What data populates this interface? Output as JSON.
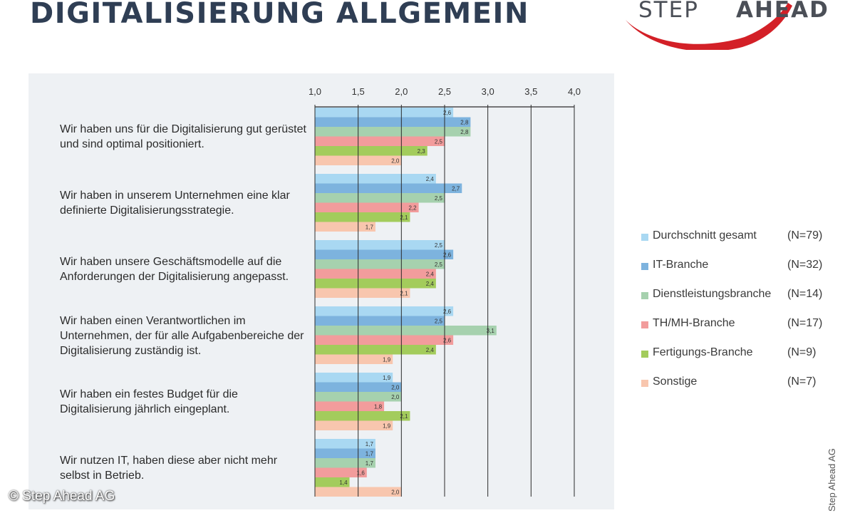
{
  "title": "DIGITALISIERUNG ALLGEMEIN",
  "logo": {
    "left_text": "STEP",
    "right_text": "AHEAD",
    "color_text": "#4b4f57",
    "color_swoosh": "#d32027"
  },
  "copyright": "© Step Ahead AG",
  "side_credit": "Step Ahead AG",
  "chart_data": {
    "type": "bar",
    "orientation": "horizontal",
    "xlim": [
      1.0,
      4.0
    ],
    "ticks": [
      "1,0",
      "1,5",
      "2,0",
      "2,5",
      "3,0",
      "3,5",
      "4,0"
    ],
    "tick_values": [
      1.0,
      1.5,
      2.0,
      2.5,
      3.0,
      3.5,
      4.0
    ],
    "categories": [
      "Wir haben uns für die Digitalisierung gut gerüstet und sind optimal positioniert.",
      "Wir haben in unserem Unternehmen eine klar definierte Digitalisierungsstrategie.",
      "Wir haben unsere Geschäftsmodelle auf die Anforderungen der Digitalisierung angepasst.",
      "Wir haben einen Verantwortlichen im Unternehmen, der für alle Aufgabenbereiche der Digitalisierung zuständig ist.",
      "Wir haben ein festes Budget für die Digitalisierung jährlich eingeplant.",
      "Wir nutzen IT, haben diese aber nicht mehr selbst in Betrieb."
    ],
    "series": [
      {
        "name": "Durchschnitt gesamt",
        "n": "(N=79)",
        "color": "#a9d8f2",
        "values": [
          2.6,
          2.4,
          2.5,
          2.6,
          1.9,
          1.7
        ]
      },
      {
        "name": "IT-Branche",
        "n": "(N=32)",
        "color": "#7db3de",
        "values": [
          2.8,
          2.7,
          2.6,
          2.5,
          2.0,
          1.7
        ]
      },
      {
        "name": "Dienstleistungsbranche",
        "n": "(N=14)",
        "color": "#a6d1ae",
        "values": [
          2.8,
          2.5,
          2.5,
          3.1,
          2.0,
          1.7
        ]
      },
      {
        "name": "TH/MH-Branche",
        "n": "(N=17)",
        "color": "#f29c9c",
        "values": [
          2.5,
          2.2,
          2.4,
          2.6,
          1.8,
          1.6
        ]
      },
      {
        "name": "Fertigungs-Branche",
        "n": "(N=9)",
        "color": "#a3cc5c",
        "values": [
          2.3,
          2.1,
          2.4,
          2.4,
          2.1,
          1.4
        ]
      },
      {
        "name": "Sonstige",
        "n": "(N=7)",
        "color": "#f8c6ae",
        "values": [
          2.0,
          1.7,
          2.1,
          1.9,
          1.9,
          2.0
        ]
      }
    ],
    "value_labels": [
      [
        "2,6",
        "2,8",
        "2,8",
        "2,5",
        "2,3",
        "2,0"
      ],
      [
        "2,4",
        "2,7",
        "2,5",
        "2,2",
        "2,1",
        "1,7"
      ],
      [
        "2,5",
        "2,6",
        "2,5",
        "2,4",
        "2,4",
        "2,1"
      ],
      [
        "2,6",
        "2,5",
        "3,1",
        "2,6",
        "2,4",
        "1,9"
      ],
      [
        "1,9",
        "2,0",
        "2,0",
        "1,8",
        "2,1",
        "1,9"
      ],
      [
        "1,7",
        "1,7",
        "1,7",
        "1,6",
        "1,4",
        "2,0"
      ]
    ]
  }
}
